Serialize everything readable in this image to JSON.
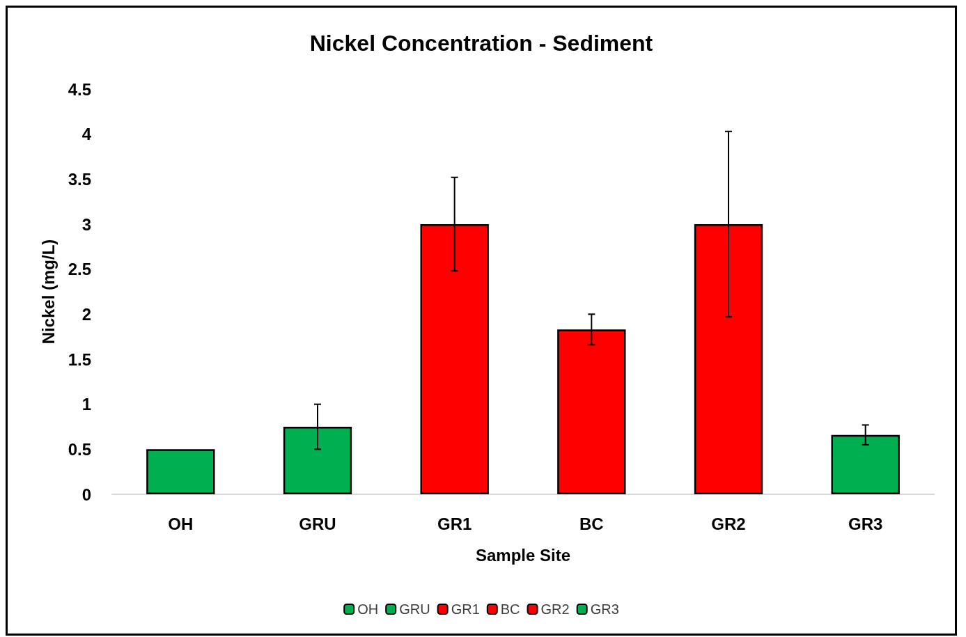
{
  "chart_data": {
    "type": "bar",
    "title": "Nickel Concentration - Sediment",
    "xlabel": "Sample Site",
    "ylabel": "Nickel (mg/L)",
    "categories": [
      "OH",
      "GRU",
      "GR1",
      "BC",
      "GR2",
      "GR3"
    ],
    "series": [
      {
        "name": "OH",
        "color": "#00b050",
        "values": [
          0.5,
          null,
          null,
          null,
          null,
          null
        ],
        "errors": [
          null,
          null,
          null,
          null,
          null,
          null
        ]
      },
      {
        "name": "GRU",
        "color": "#00b050",
        "values": [
          null,
          0.75,
          null,
          null,
          null,
          null
        ],
        "errors": [
          null,
          0.25,
          null,
          null,
          null,
          null
        ]
      },
      {
        "name": "GR1",
        "color": "#ff0000",
        "values": [
          null,
          null,
          3.0,
          null,
          null,
          null
        ],
        "errors": [
          null,
          null,
          0.52,
          null,
          null,
          null
        ]
      },
      {
        "name": "BC",
        "color": "#ff0000",
        "values": [
          null,
          null,
          null,
          1.83,
          null,
          null
        ],
        "errors": [
          null,
          null,
          null,
          0.17,
          null,
          null
        ]
      },
      {
        "name": "GR2",
        "color": "#ff0000",
        "values": [
          null,
          null,
          null,
          null,
          3.0,
          null
        ],
        "errors": [
          null,
          null,
          null,
          null,
          1.03,
          null
        ]
      },
      {
        "name": "GR3",
        "color": "#00b050",
        "values": [
          null,
          null,
          null,
          null,
          null,
          0.66
        ],
        "errors": [
          null,
          null,
          null,
          null,
          null,
          0.11
        ]
      }
    ],
    "ylim": [
      0,
      4.5
    ],
    "yticks": [
      0,
      0.5,
      1,
      1.5,
      2,
      2.5,
      3,
      3.5,
      4,
      4.5
    ],
    "grid": false,
    "legend": "bottom"
  }
}
